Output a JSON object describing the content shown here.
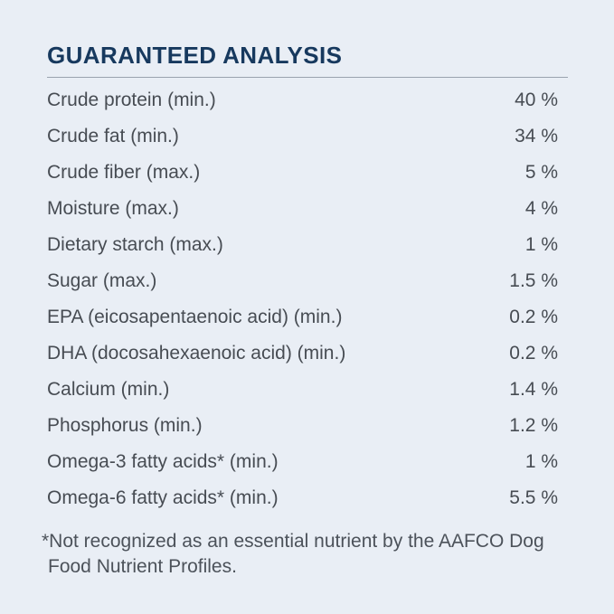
{
  "header": {
    "title": "GUARANTEED ANALYSIS"
  },
  "analysis": {
    "rows": [
      {
        "label": "Crude protein (min.)",
        "value": "40 %"
      },
      {
        "label": "Crude fat (min.)",
        "value": "34 %"
      },
      {
        "label": "Crude fiber (max.)",
        "value": "5 %"
      },
      {
        "label": "Moisture (max.)",
        "value": "4 %"
      },
      {
        "label": "Dietary starch (max.)",
        "value": "1 %"
      },
      {
        "label": "Sugar (max.)",
        "value": "1.5 %"
      },
      {
        "label": "EPA (eicosapentaenoic acid) (min.)",
        "value": "0.2 %"
      },
      {
        "label": "DHA (docosahexaenoic acid) (min.)",
        "value": "0.2 %"
      },
      {
        "label": "Calcium (min.)",
        "value": "1.4 %"
      },
      {
        "label": "Phosphorus (min.)",
        "value": "1.2 %"
      },
      {
        "label": "Omega-3 fatty acids* (min.)",
        "value": "1 %"
      },
      {
        "label": "Omega-6 fatty acids* (min.)",
        "value": "5.5 %"
      }
    ]
  },
  "footnote": {
    "text": "*Not recognized as an essential nutrient by the AAFCO Dog Food Nutrient Profiles."
  },
  "colors": {
    "background": "#e9eef5",
    "title": "#17395e",
    "divider": "#9aa3ae",
    "row_text": "#474c53",
    "footnote_text": "#4c525a"
  }
}
